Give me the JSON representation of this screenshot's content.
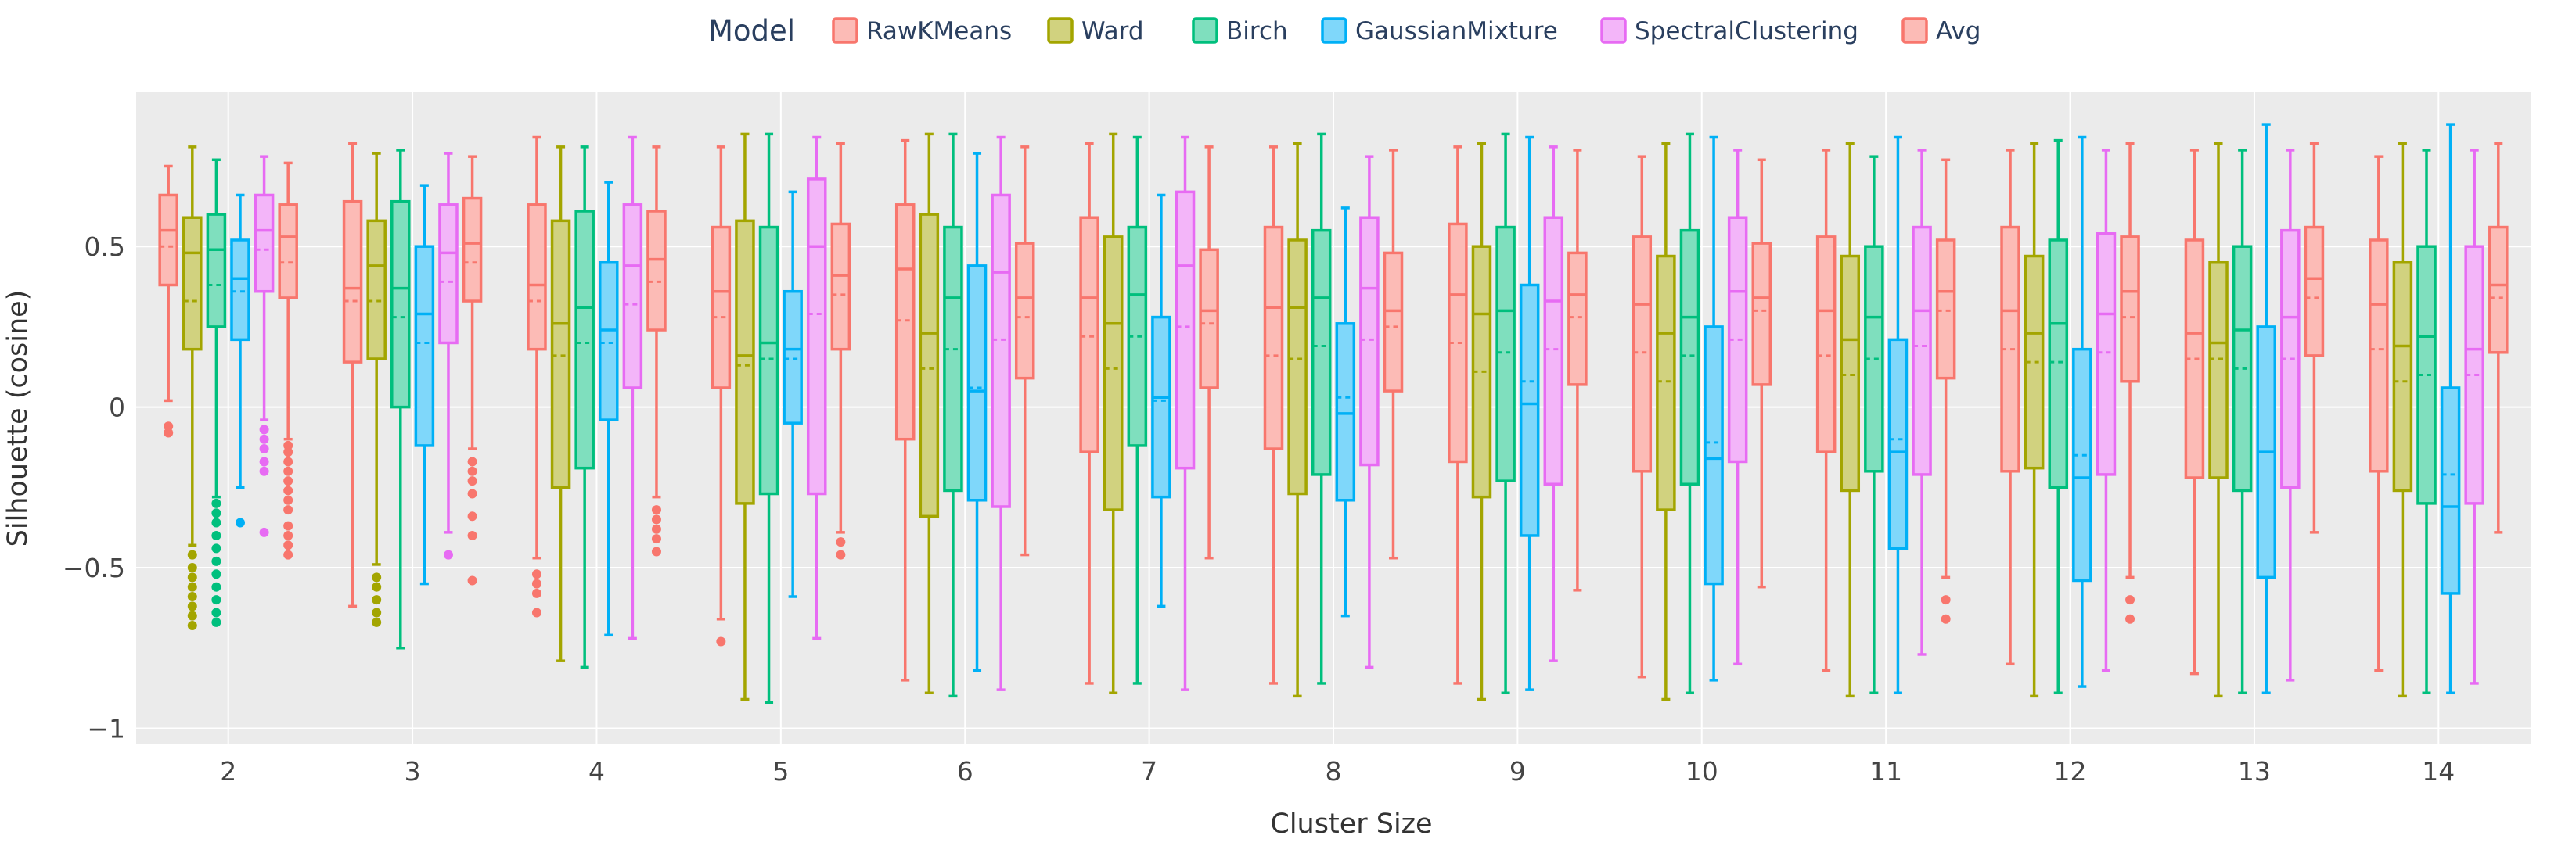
{
  "chart_data": {
    "type": "box",
    "title": "",
    "xlabel": "Cluster Size",
    "ylabel": "Silhouette (cosine)",
    "ylim": [
      -1.05,
      0.98
    ],
    "yticks": [
      -1,
      -0.5,
      0,
      0.5
    ],
    "ytick_labels": [
      "−1",
      "−0.5",
      "0",
      "0.5"
    ],
    "categories": [
      "2",
      "3",
      "4",
      "5",
      "6",
      "7",
      "8",
      "9",
      "10",
      "11",
      "12",
      "13",
      "14"
    ],
    "grid": true,
    "legend": {
      "title": "Model",
      "position": "top"
    },
    "series": [
      {
        "name": "RawKMeans",
        "color": "#F8766D",
        "fill": "#FCBBB6",
        "boxes": [
          {
            "lf": 0.02,
            "q1": 0.38,
            "med": 0.55,
            "q3": 0.66,
            "uf": 0.75,
            "mean": 0.5,
            "out": [
              -0.06,
              -0.08
            ]
          },
          {
            "lf": -0.62,
            "q1": 0.14,
            "med": 0.37,
            "q3": 0.64,
            "uf": 0.82,
            "mean": 0.33,
            "out": []
          },
          {
            "lf": -0.47,
            "q1": 0.18,
            "med": 0.38,
            "q3": 0.63,
            "uf": 0.84,
            "mean": 0.33,
            "out": [
              -0.52,
              -0.55,
              -0.58,
              -0.64
            ]
          },
          {
            "lf": -0.66,
            "q1": 0.06,
            "med": 0.36,
            "q3": 0.56,
            "uf": 0.81,
            "mean": 0.28,
            "out": [
              -0.73
            ]
          },
          {
            "lf": -0.85,
            "q1": -0.1,
            "med": 0.43,
            "q3": 0.63,
            "uf": 0.83,
            "mean": 0.27,
            "out": []
          },
          {
            "lf": -0.86,
            "q1": -0.14,
            "med": 0.34,
            "q3": 0.59,
            "uf": 0.82,
            "mean": 0.22,
            "out": []
          },
          {
            "lf": -0.86,
            "q1": -0.13,
            "med": 0.31,
            "q3": 0.56,
            "uf": 0.81,
            "mean": 0.16,
            "out": []
          },
          {
            "lf": -0.86,
            "q1": -0.17,
            "med": 0.35,
            "q3": 0.57,
            "uf": 0.81,
            "mean": 0.2,
            "out": []
          },
          {
            "lf": -0.84,
            "q1": -0.2,
            "med": 0.32,
            "q3": 0.53,
            "uf": 0.78,
            "mean": 0.17,
            "out": []
          },
          {
            "lf": -0.82,
            "q1": -0.14,
            "med": 0.3,
            "q3": 0.53,
            "uf": 0.8,
            "mean": 0.16,
            "out": []
          },
          {
            "lf": -0.8,
            "q1": -0.2,
            "med": 0.3,
            "q3": 0.56,
            "uf": 0.8,
            "mean": 0.18,
            "out": []
          },
          {
            "lf": -0.83,
            "q1": -0.22,
            "med": 0.23,
            "q3": 0.52,
            "uf": 0.8,
            "mean": 0.15,
            "out": []
          },
          {
            "lf": -0.82,
            "q1": -0.2,
            "med": 0.32,
            "q3": 0.52,
            "uf": 0.78,
            "mean": 0.18,
            "out": []
          }
        ]
      },
      {
        "name": "Ward",
        "color": "#A3A500",
        "fill": "#D1D27F",
        "boxes": [
          {
            "lf": -0.43,
            "q1": 0.18,
            "med": 0.48,
            "q3": 0.59,
            "uf": 0.81,
            "mean": 0.33,
            "out": [
              -0.46,
              -0.5,
              -0.53,
              -0.56,
              -0.59,
              -0.62,
              -0.65,
              -0.68
            ]
          },
          {
            "lf": -0.49,
            "q1": 0.15,
            "med": 0.44,
            "q3": 0.58,
            "uf": 0.79,
            "mean": 0.33,
            "out": [
              -0.53,
              -0.56,
              -0.6,
              -0.64,
              -0.67
            ]
          },
          {
            "lf": -0.79,
            "q1": -0.25,
            "med": 0.26,
            "q3": 0.58,
            "uf": 0.81,
            "mean": 0.16,
            "out": []
          },
          {
            "lf": -0.91,
            "q1": -0.3,
            "med": 0.16,
            "q3": 0.58,
            "uf": 0.85,
            "mean": 0.13,
            "out": []
          },
          {
            "lf": -0.89,
            "q1": -0.34,
            "med": 0.23,
            "q3": 0.6,
            "uf": 0.85,
            "mean": 0.12,
            "out": []
          },
          {
            "lf": -0.89,
            "q1": -0.32,
            "med": 0.26,
            "q3": 0.53,
            "uf": 0.85,
            "mean": 0.12,
            "out": []
          },
          {
            "lf": -0.9,
            "q1": -0.27,
            "med": 0.31,
            "q3": 0.52,
            "uf": 0.82,
            "mean": 0.15,
            "out": []
          },
          {
            "lf": -0.91,
            "q1": -0.28,
            "med": 0.29,
            "q3": 0.5,
            "uf": 0.82,
            "mean": 0.11,
            "out": []
          },
          {
            "lf": -0.91,
            "q1": -0.32,
            "med": 0.23,
            "q3": 0.47,
            "uf": 0.82,
            "mean": 0.08,
            "out": []
          },
          {
            "lf": -0.9,
            "q1": -0.26,
            "med": 0.21,
            "q3": 0.47,
            "uf": 0.82,
            "mean": 0.1,
            "out": []
          },
          {
            "lf": -0.9,
            "q1": -0.19,
            "med": 0.23,
            "q3": 0.47,
            "uf": 0.82,
            "mean": 0.14,
            "out": []
          },
          {
            "lf": -0.9,
            "q1": -0.22,
            "med": 0.2,
            "q3": 0.45,
            "uf": 0.82,
            "mean": 0.15,
            "out": []
          },
          {
            "lf": -0.9,
            "q1": -0.26,
            "med": 0.19,
            "q3": 0.45,
            "uf": 0.82,
            "mean": 0.08,
            "out": []
          }
        ]
      },
      {
        "name": "Birch",
        "color": "#00BF7D",
        "fill": "#7FDFBE",
        "boxes": [
          {
            "lf": -0.28,
            "q1": 0.25,
            "med": 0.49,
            "q3": 0.6,
            "uf": 0.77,
            "mean": 0.38,
            "out": [
              -0.3,
              -0.33,
              -0.36,
              -0.4,
              -0.44,
              -0.48,
              -0.52,
              -0.56,
              -0.6,
              -0.64,
              -0.67
            ]
          },
          {
            "lf": -0.75,
            "q1": 0.0,
            "med": 0.37,
            "q3": 0.64,
            "uf": 0.8,
            "mean": 0.28,
            "out": []
          },
          {
            "lf": -0.81,
            "q1": -0.19,
            "med": 0.31,
            "q3": 0.61,
            "uf": 0.81,
            "mean": 0.2,
            "out": []
          },
          {
            "lf": -0.92,
            "q1": -0.27,
            "med": 0.2,
            "q3": 0.56,
            "uf": 0.85,
            "mean": 0.15,
            "out": []
          },
          {
            "lf": -0.9,
            "q1": -0.26,
            "med": 0.34,
            "q3": 0.56,
            "uf": 0.85,
            "mean": 0.18,
            "out": []
          },
          {
            "lf": -0.86,
            "q1": -0.12,
            "med": 0.35,
            "q3": 0.56,
            "uf": 0.84,
            "mean": 0.22,
            "out": []
          },
          {
            "lf": -0.86,
            "q1": -0.21,
            "med": 0.34,
            "q3": 0.55,
            "uf": 0.85,
            "mean": 0.19,
            "out": []
          },
          {
            "lf": -0.89,
            "q1": -0.23,
            "med": 0.3,
            "q3": 0.56,
            "uf": 0.85,
            "mean": 0.17,
            "out": []
          },
          {
            "lf": -0.89,
            "q1": -0.24,
            "med": 0.28,
            "q3": 0.55,
            "uf": 0.85,
            "mean": 0.16,
            "out": []
          },
          {
            "lf": -0.89,
            "q1": -0.2,
            "med": 0.28,
            "q3": 0.5,
            "uf": 0.78,
            "mean": 0.15,
            "out": []
          },
          {
            "lf": -0.89,
            "q1": -0.25,
            "med": 0.26,
            "q3": 0.52,
            "uf": 0.83,
            "mean": 0.14,
            "out": []
          },
          {
            "lf": -0.89,
            "q1": -0.26,
            "med": 0.24,
            "q3": 0.5,
            "uf": 0.8,
            "mean": 0.12,
            "out": []
          },
          {
            "lf": -0.89,
            "q1": -0.3,
            "med": 0.22,
            "q3": 0.5,
            "uf": 0.8,
            "mean": 0.1,
            "out": []
          }
        ]
      },
      {
        "name": "GaussianMixture",
        "color": "#00B0F6",
        "fill": "#7FD7FA",
        "boxes": [
          {
            "lf": -0.25,
            "q1": 0.21,
            "med": 0.4,
            "q3": 0.52,
            "uf": 0.66,
            "mean": 0.36,
            "out": [
              -0.36
            ]
          },
          {
            "lf": -0.55,
            "q1": -0.12,
            "med": 0.29,
            "q3": 0.5,
            "uf": 0.69,
            "mean": 0.2,
            "out": []
          },
          {
            "lf": -0.71,
            "q1": -0.04,
            "med": 0.24,
            "q3": 0.45,
            "uf": 0.7,
            "mean": 0.2,
            "out": []
          },
          {
            "lf": -0.59,
            "q1": -0.05,
            "med": 0.18,
            "q3": 0.36,
            "uf": 0.67,
            "mean": 0.15,
            "out": []
          },
          {
            "lf": -0.82,
            "q1": -0.29,
            "med": 0.05,
            "q3": 0.44,
            "uf": 0.79,
            "mean": 0.06,
            "out": []
          },
          {
            "lf": -0.62,
            "q1": -0.28,
            "med": 0.03,
            "q3": 0.28,
            "uf": 0.66,
            "mean": 0.02,
            "out": []
          },
          {
            "lf": -0.65,
            "q1": -0.29,
            "med": -0.02,
            "q3": 0.26,
            "uf": 0.62,
            "mean": 0.03,
            "out": []
          },
          {
            "lf": -0.88,
            "q1": -0.4,
            "med": 0.01,
            "q3": 0.38,
            "uf": 0.84,
            "mean": 0.08,
            "out": []
          },
          {
            "lf": -0.85,
            "q1": -0.55,
            "med": -0.16,
            "q3": 0.25,
            "uf": 0.84,
            "mean": -0.11,
            "out": []
          },
          {
            "lf": -0.89,
            "q1": -0.44,
            "med": -0.14,
            "q3": 0.21,
            "uf": 0.84,
            "mean": -0.1,
            "out": []
          },
          {
            "lf": -0.87,
            "q1": -0.54,
            "med": -0.22,
            "q3": 0.18,
            "uf": 0.84,
            "mean": -0.15,
            "out": []
          },
          {
            "lf": -0.89,
            "q1": -0.53,
            "med": -0.14,
            "q3": 0.25,
            "uf": 0.88,
            "mean": -0.14,
            "out": []
          },
          {
            "lf": -0.89,
            "q1": -0.58,
            "med": -0.31,
            "q3": 0.06,
            "uf": 0.88,
            "mean": -0.21,
            "out": []
          }
        ]
      },
      {
        "name": "SpectralClustering",
        "color": "#E76BF3",
        "fill": "#F3B5F9",
        "boxes": [
          {
            "lf": -0.04,
            "q1": 0.36,
            "med": 0.55,
            "q3": 0.66,
            "uf": 0.78,
            "mean": 0.49,
            "out": [
              -0.07,
              -0.1,
              -0.13,
              -0.17,
              -0.2,
              -0.39
            ]
          },
          {
            "lf": -0.39,
            "q1": 0.2,
            "med": 0.48,
            "q3": 0.63,
            "uf": 0.79,
            "mean": 0.39,
            "out": [
              -0.46
            ]
          },
          {
            "lf": -0.72,
            "q1": 0.06,
            "med": 0.44,
            "q3": 0.63,
            "uf": 0.84,
            "mean": 0.32,
            "out": []
          },
          {
            "lf": -0.72,
            "q1": -0.27,
            "med": 0.5,
            "q3": 0.71,
            "uf": 0.84,
            "mean": 0.29,
            "out": []
          },
          {
            "lf": -0.88,
            "q1": -0.31,
            "med": 0.42,
            "q3": 0.66,
            "uf": 0.84,
            "mean": 0.21,
            "out": []
          },
          {
            "lf": -0.88,
            "q1": -0.19,
            "med": 0.44,
            "q3": 0.67,
            "uf": 0.84,
            "mean": 0.25,
            "out": []
          },
          {
            "lf": -0.81,
            "q1": -0.18,
            "med": 0.37,
            "q3": 0.59,
            "uf": 0.78,
            "mean": 0.21,
            "out": []
          },
          {
            "lf": -0.79,
            "q1": -0.24,
            "med": 0.33,
            "q3": 0.59,
            "uf": 0.81,
            "mean": 0.18,
            "out": []
          },
          {
            "lf": -0.8,
            "q1": -0.17,
            "med": 0.36,
            "q3": 0.59,
            "uf": 0.8,
            "mean": 0.21,
            "out": []
          },
          {
            "lf": -0.77,
            "q1": -0.21,
            "med": 0.3,
            "q3": 0.56,
            "uf": 0.8,
            "mean": 0.19,
            "out": []
          },
          {
            "lf": -0.82,
            "q1": -0.21,
            "med": 0.29,
            "q3": 0.54,
            "uf": 0.8,
            "mean": 0.17,
            "out": []
          },
          {
            "lf": -0.85,
            "q1": -0.25,
            "med": 0.28,
            "q3": 0.55,
            "uf": 0.8,
            "mean": 0.15,
            "out": []
          },
          {
            "lf": -0.86,
            "q1": -0.3,
            "med": 0.18,
            "q3": 0.5,
            "uf": 0.8,
            "mean": 0.1,
            "out": []
          }
        ]
      },
      {
        "name": "Avg",
        "color": "#F8766D",
        "fill": "#FCBBB6",
        "boxes": [
          {
            "lf": -0.1,
            "q1": 0.34,
            "med": 0.53,
            "q3": 0.63,
            "uf": 0.76,
            "mean": 0.45,
            "out": [
              -0.12,
              -0.14,
              -0.17,
              -0.2,
              -0.23,
              -0.26,
              -0.29,
              -0.32,
              -0.37,
              -0.4,
              -0.43,
              -0.46
            ]
          },
          {
            "lf": -0.13,
            "q1": 0.33,
            "med": 0.51,
            "q3": 0.65,
            "uf": 0.78,
            "mean": 0.45,
            "out": [
              -0.17,
              -0.2,
              -0.23,
              -0.27,
              -0.34,
              -0.4,
              -0.54
            ]
          },
          {
            "lf": -0.28,
            "q1": 0.24,
            "med": 0.46,
            "q3": 0.61,
            "uf": 0.81,
            "mean": 0.39,
            "out": [
              -0.32,
              -0.35,
              -0.38,
              -0.41,
              -0.45
            ]
          },
          {
            "lf": -0.39,
            "q1": 0.18,
            "med": 0.41,
            "q3": 0.57,
            "uf": 0.82,
            "mean": 0.35,
            "out": [
              -0.42,
              -0.46
            ]
          },
          {
            "lf": -0.46,
            "q1": 0.09,
            "med": 0.34,
            "q3": 0.51,
            "uf": 0.81,
            "mean": 0.28,
            "out": []
          },
          {
            "lf": -0.47,
            "q1": 0.06,
            "med": 0.3,
            "q3": 0.49,
            "uf": 0.81,
            "mean": 0.26,
            "out": []
          },
          {
            "lf": -0.47,
            "q1": 0.05,
            "med": 0.3,
            "q3": 0.48,
            "uf": 0.8,
            "mean": 0.25,
            "out": []
          },
          {
            "lf": -0.57,
            "q1": 0.07,
            "med": 0.35,
            "q3": 0.48,
            "uf": 0.8,
            "mean": 0.28,
            "out": []
          },
          {
            "lf": -0.56,
            "q1": 0.07,
            "med": 0.34,
            "q3": 0.51,
            "uf": 0.77,
            "mean": 0.3,
            "out": []
          },
          {
            "lf": -0.53,
            "q1": 0.09,
            "med": 0.36,
            "q3": 0.52,
            "uf": 0.77,
            "mean": 0.3,
            "out": [
              -0.6,
              -0.66
            ]
          },
          {
            "lf": -0.53,
            "q1": 0.08,
            "med": 0.36,
            "q3": 0.53,
            "uf": 0.82,
            "mean": 0.28,
            "out": [
              -0.6,
              -0.66
            ]
          },
          {
            "lf": -0.39,
            "q1": 0.16,
            "med": 0.4,
            "q3": 0.56,
            "uf": 0.82,
            "mean": 0.34,
            "out": []
          },
          {
            "lf": -0.39,
            "q1": 0.17,
            "med": 0.38,
            "q3": 0.56,
            "uf": 0.82,
            "mean": 0.34,
            "out": []
          }
        ]
      }
    ]
  }
}
